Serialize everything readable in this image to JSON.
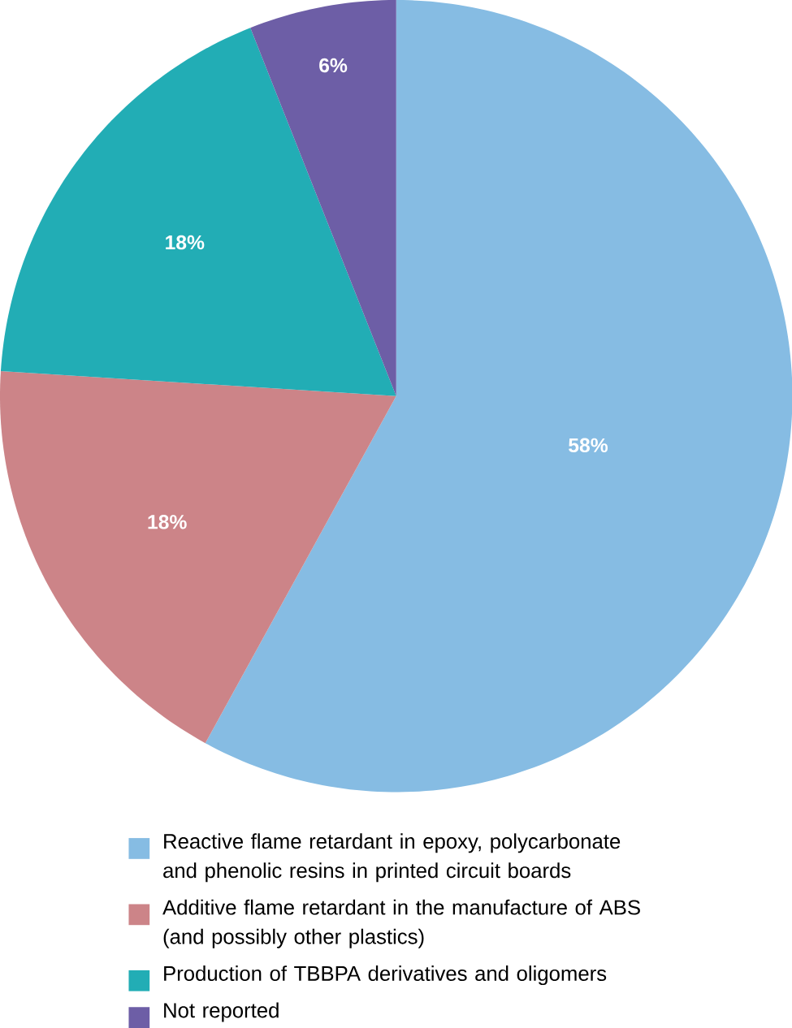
{
  "chart_data": {
    "type": "pie",
    "categories": [
      "Reactive flame retardant in epoxy, polycarbonate and phenolic resins in printed circuit boards",
      "Additive flame retardant in the manufacture of ABS (and possibly other plastics)",
      "Production of TBBPA derivatives and oligomers",
      "Not reported"
    ],
    "values": [
      58,
      18,
      18,
      6
    ],
    "colors": [
      "#86bce3",
      "#cc8488",
      "#22adb5",
      "#6d5ea6"
    ],
    "value_labels": [
      "58%",
      "18%",
      "18%",
      "6%"
    ],
    "legend": "bottom"
  }
}
